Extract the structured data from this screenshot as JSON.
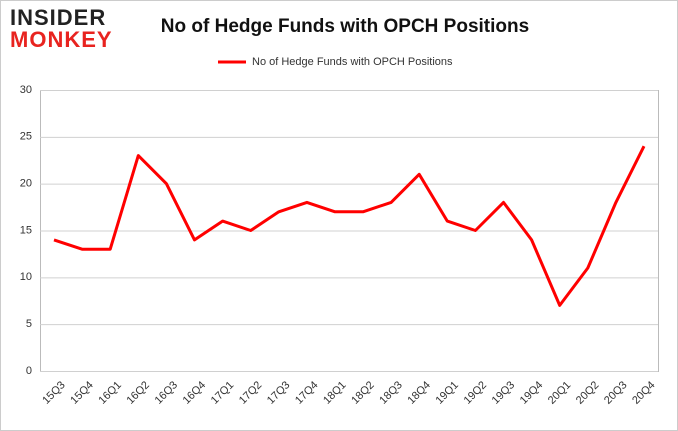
{
  "logo": [
    "INSIDER",
    "MONKEY"
  ],
  "chart_data": {
    "type": "line",
    "title": "No of Hedge Funds with OPCH Positions",
    "categories": [
      "15Q3",
      "15Q4",
      "16Q1",
      "16Q2",
      "16Q3",
      "16Q4",
      "17Q1",
      "17Q2",
      "17Q3",
      "17Q4",
      "18Q1",
      "18Q2",
      "18Q3",
      "18Q4",
      "19Q1",
      "19Q2",
      "19Q3",
      "19Q4",
      "20Q1",
      "20Q2",
      "20Q3",
      "20Q4"
    ],
    "series": [
      {
        "name": "No of Hedge Funds with OPCH Positions",
        "color": "#ff0000",
        "values": [
          14,
          13,
          13,
          23,
          20,
          14,
          16,
          15,
          17,
          18,
          17,
          17,
          18,
          21,
          16,
          15,
          18,
          14,
          7,
          11,
          18,
          24
        ]
      }
    ],
    "ylim": [
      0,
      30
    ],
    "yticks": [
      0,
      5,
      10,
      15,
      20,
      25,
      30
    ],
    "grid": true,
    "legend": "top"
  }
}
